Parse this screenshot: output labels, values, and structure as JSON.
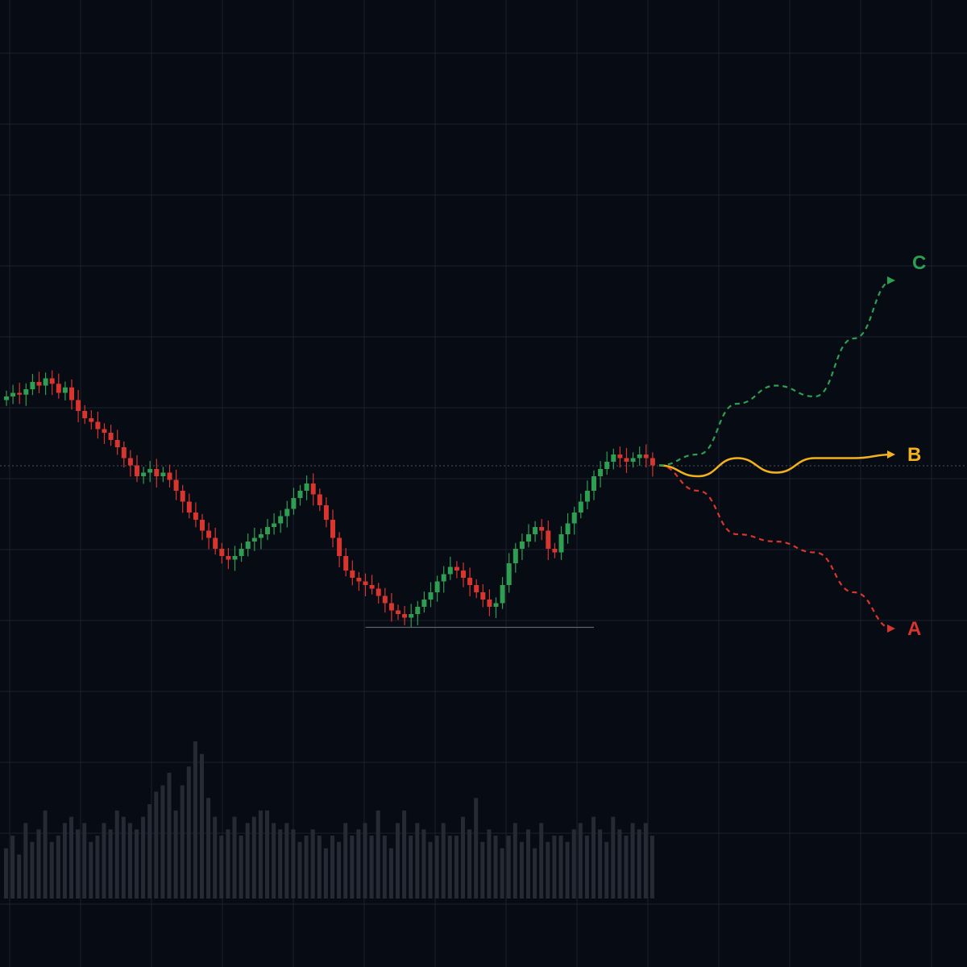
{
  "colors": {
    "background": "#070b13",
    "grid": "#1b222d",
    "bull": "#2e9e52",
    "bear": "#d8352f",
    "volume": "#252b35",
    "support": "#5c6470",
    "scenario_a": "#d8352f",
    "scenario_b": "#f3b21c",
    "scenario_c": "#2e9e52"
  },
  "chart_data": {
    "type": "candlestick",
    "grid": true,
    "x_range": [
      0,
      100
    ],
    "y_range": [
      0,
      100
    ],
    "price_series": [
      64,
      65,
      64.5,
      66,
      68,
      67,
      69,
      67.5,
      65,
      66.5,
      63,
      60,
      58,
      57,
      55,
      54,
      52,
      50,
      47,
      45,
      42,
      43,
      44,
      42,
      43,
      41,
      38,
      35,
      32,
      30,
      27,
      25,
      22,
      20,
      19,
      20,
      22,
      24,
      25,
      26,
      28,
      29,
      31,
      33,
      36,
      38,
      40,
      37,
      34,
      30,
      25,
      20,
      16,
      14,
      13,
      12,
      11,
      9,
      7,
      5,
      4,
      3,
      4,
      6,
      8,
      10,
      13,
      15,
      17,
      16,
      14,
      12,
      10,
      8,
      6,
      7,
      12,
      18,
      22,
      24,
      26,
      28,
      27,
      22,
      21,
      26,
      29,
      32,
      35,
      38,
      42,
      44,
      46,
      48,
      47,
      46,
      47,
      48,
      47,
      45
    ],
    "volume": [
      8,
      10,
      7,
      12,
      9,
      11,
      14,
      9,
      10,
      12,
      13,
      11,
      12,
      9,
      10,
      12,
      11,
      14,
      13,
      12,
      11,
      13,
      15,
      17,
      18,
      20,
      14,
      18,
      21,
      25,
      23,
      16,
      13,
      10,
      11,
      13,
      10,
      12,
      13,
      14,
      14,
      12,
      11,
      12,
      11,
      9,
      10,
      11,
      10,
      8,
      10,
      9,
      12,
      10,
      11,
      12,
      10,
      14,
      10,
      8,
      12,
      14,
      10,
      12,
      11,
      9,
      10,
      12,
      10,
      10,
      13,
      11,
      16,
      9,
      11,
      10,
      8,
      10,
      12,
      9,
      11,
      8,
      12,
      9,
      10,
      10,
      9,
      11,
      12,
      10,
      13,
      11,
      9,
      13,
      11,
      10,
      12,
      11,
      12,
      10
    ],
    "support_level": 3,
    "scenarios": [
      {
        "label": "A",
        "color": "#d8352f",
        "style": "dashed",
        "path": [
          [
            100,
            45
          ],
          [
            105,
            38
          ],
          [
            110,
            26
          ],
          [
            115,
            24
          ],
          [
            120,
            21
          ],
          [
            125,
            10
          ],
          [
            130,
            0
          ]
        ]
      },
      {
        "label": "B",
        "color": "#f3b21c",
        "style": "solid",
        "path": [
          [
            100,
            45
          ],
          [
            105,
            42
          ],
          [
            110,
            47
          ],
          [
            115,
            43
          ],
          [
            120,
            47
          ],
          [
            125,
            47
          ],
          [
            130,
            48
          ]
        ]
      },
      {
        "label": "C",
        "color": "#2e9e52",
        "style": "dashed",
        "path": [
          [
            100,
            45
          ],
          [
            105,
            48
          ],
          [
            110,
            62
          ],
          [
            115,
            67
          ],
          [
            120,
            64
          ],
          [
            125,
            80
          ],
          [
            130,
            96
          ]
        ]
      }
    ]
  }
}
